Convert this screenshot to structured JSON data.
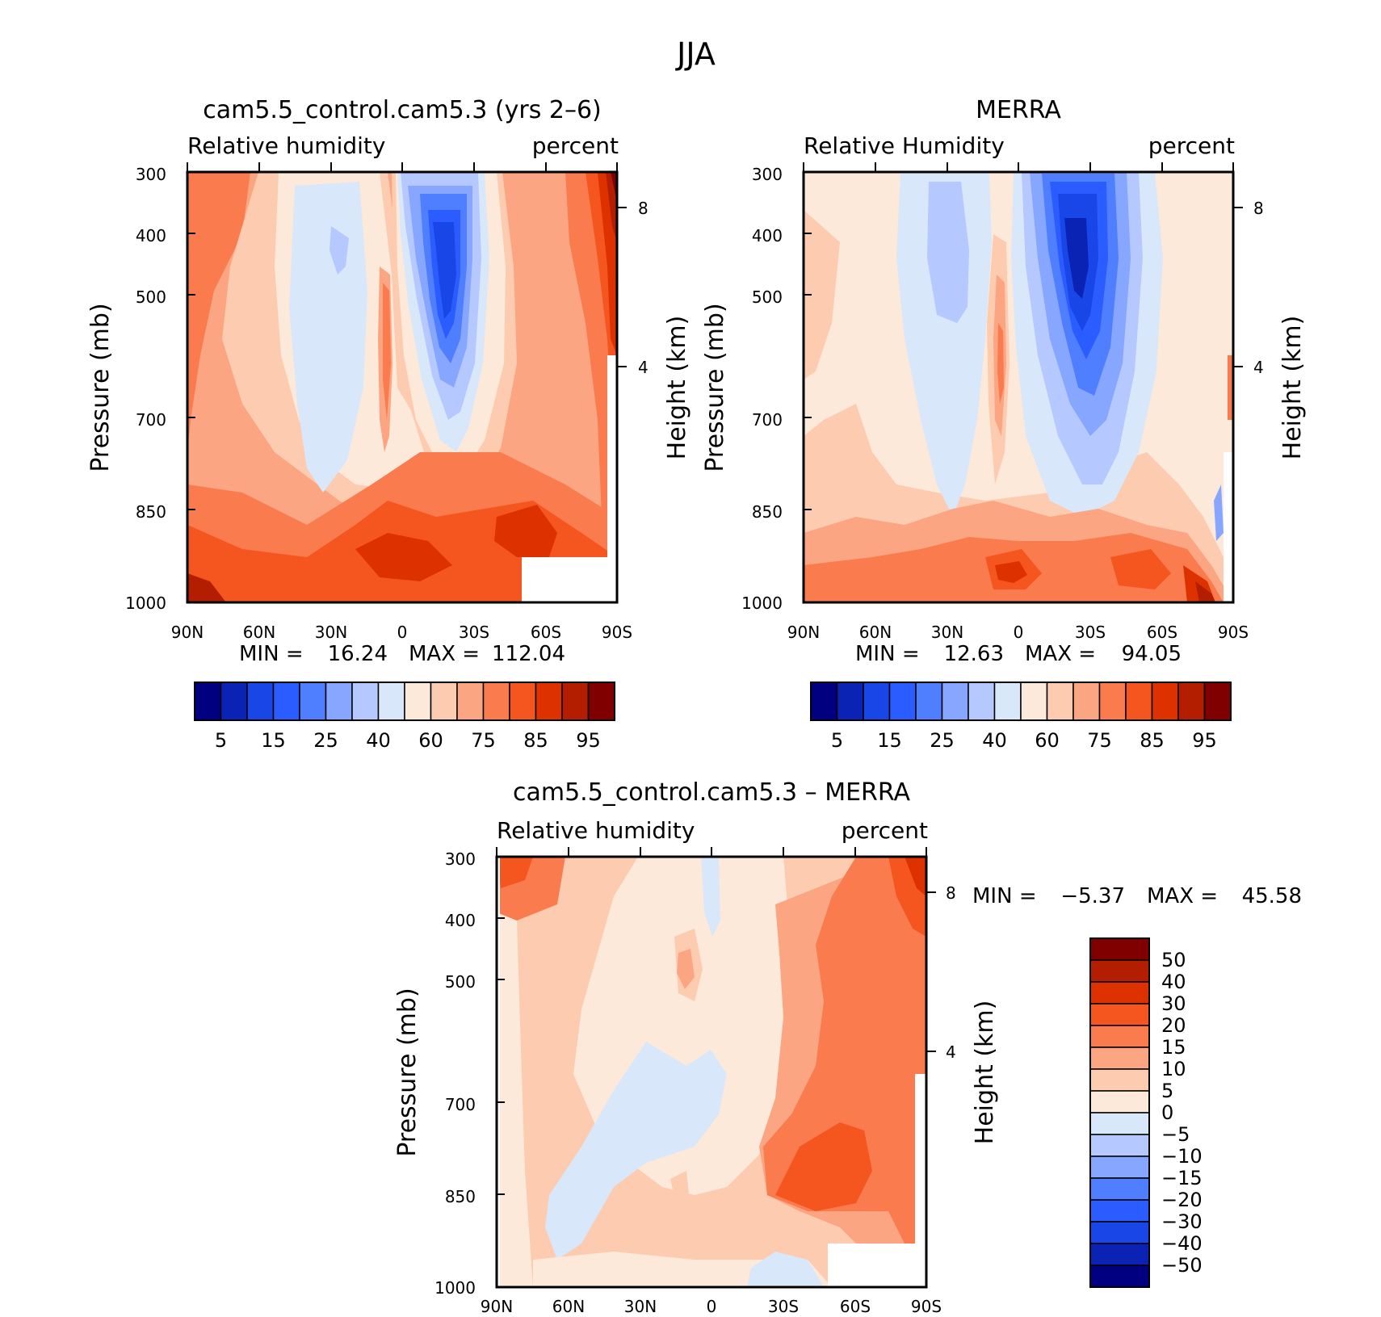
{
  "figure_title": "JJA",
  "colors": {
    "rh_levels": [
      "#000080",
      "#0a23b4",
      "#1946e6",
      "#2a5cff",
      "#4f7fff",
      "#86a6ff",
      "#b5c8ff",
      "#d9e7fa",
      "#fde9da",
      "#fccbb0",
      "#fba582",
      "#f97b4e",
      "#f5551f",
      "#dd3200",
      "#b31e00",
      "#800000"
    ],
    "diff_levels": [
      "#000080",
      "#0a23b4",
      "#1946e6",
      "#2a5cff",
      "#4f7fff",
      "#86a6ff",
      "#b5c8ff",
      "#d9e7fa",
      "#fde9da",
      "#fccbb0",
      "#fba582",
      "#f97b4e",
      "#f5551f",
      "#dd3200",
      "#b31e00",
      "#800000"
    ]
  },
  "panels": [
    {
      "title": "cam5.5_control.cam5.3 (yrs 2–6)",
      "left_label": "Relative humidity",
      "right_label": "percent",
      "ylabel": "Pressure (mb)",
      "y2label": "Height (km)",
      "y_ticks": [
        "300",
        "400",
        "500",
        "700",
        "850",
        "1000"
      ],
      "y2_ticks": [
        "8",
        "4"
      ],
      "x_ticks": [
        "90N",
        "60N",
        "30N",
        "0",
        "30S",
        "60S",
        "90S"
      ],
      "stats": {
        "min_label": "MIN =",
        "min": "16.24",
        "max_label": "MAX =",
        "max": "112.04"
      },
      "colorbar_labels": [
        "5",
        "15",
        "25",
        "40",
        "60",
        "75",
        "85",
        "95"
      ]
    },
    {
      "title": "MERRA",
      "left_label": "Relative Humidity",
      "right_label": "percent",
      "ylabel": "Pressure (mb)",
      "y2label": "Height (km)",
      "y_ticks": [
        "300",
        "400",
        "500",
        "700",
        "850",
        "1000"
      ],
      "y2_ticks": [
        "8",
        "4"
      ],
      "x_ticks": [
        "90N",
        "60N",
        "30N",
        "0",
        "30S",
        "60S",
        "90S"
      ],
      "stats": {
        "min_label": "MIN =",
        "min": "12.63",
        "max_label": "MAX =",
        "max": "94.05"
      },
      "colorbar_labels": [
        "5",
        "15",
        "25",
        "40",
        "60",
        "75",
        "85",
        "95"
      ]
    },
    {
      "title": "cam5.5_control.cam5.3 – MERRA",
      "left_label": "Relative humidity",
      "right_label": "percent",
      "ylabel": "Pressure (mb)",
      "y2label": "Height (km)",
      "y_ticks": [
        "300",
        "400",
        "500",
        "700",
        "850",
        "1000"
      ],
      "y2_ticks": [
        "8",
        "4"
      ],
      "x_ticks": [
        "90N",
        "60N",
        "30N",
        "0",
        "30S",
        "60S",
        "90S"
      ],
      "stats": {
        "min_label": "MIN =",
        "min": "−5.37",
        "max_label": "MAX =",
        "max": "45.58"
      },
      "colorbar_labels": [
        "50",
        "40",
        "30",
        "20",
        "15",
        "10",
        "5",
        "0",
        "−5",
        "−10",
        "−15",
        "−20",
        "−30",
        "−40",
        "−50"
      ]
    }
  ],
  "chart_data": [
    {
      "type": "heatmap",
      "title": "cam5.5_control.cam5.3 (yrs 2–6)",
      "x_categories": [
        "90N",
        "60N",
        "30N",
        "0",
        "30S",
        "60S",
        "90S"
      ],
      "x_range_deg": [
        90,
        -90
      ],
      "y_pressure_levels_mb": [
        300,
        400,
        500,
        700,
        850,
        1000
      ],
      "height_km_ticks": [
        8,
        4
      ],
      "variable": "Relative humidity",
      "units": "percent",
      "contour_levels": [
        5,
        10,
        15,
        20,
        25,
        30,
        40,
        50,
        60,
        70,
        75,
        80,
        85,
        90,
        95
      ],
      "min": 16.24,
      "max": 112.04
    },
    {
      "type": "heatmap",
      "title": "MERRA",
      "x_categories": [
        "90N",
        "60N",
        "30N",
        "0",
        "30S",
        "60S",
        "90S"
      ],
      "x_range_deg": [
        90,
        -90
      ],
      "y_pressure_levels_mb": [
        300,
        400,
        500,
        700,
        850,
        1000
      ],
      "height_km_ticks": [
        8,
        4
      ],
      "variable": "Relative Humidity",
      "units": "percent",
      "contour_levels": [
        5,
        10,
        15,
        20,
        25,
        30,
        40,
        50,
        60,
        70,
        75,
        80,
        85,
        90,
        95
      ],
      "min": 12.63,
      "max": 94.05
    },
    {
      "type": "heatmap",
      "title": "cam5.5_control.cam5.3 – MERRA",
      "x_categories": [
        "90N",
        "60N",
        "30N",
        "0",
        "30S",
        "60S",
        "90S"
      ],
      "x_range_deg": [
        90,
        -90
      ],
      "y_pressure_levels_mb": [
        300,
        400,
        500,
        700,
        850,
        1000
      ],
      "height_km_ticks": [
        8,
        4
      ],
      "variable": "Relative humidity",
      "units": "percent",
      "contour_levels": [
        -50,
        -40,
        -30,
        -20,
        -15,
        -10,
        -5,
        0,
        5,
        10,
        15,
        20,
        30,
        40,
        50
      ],
      "min": -5.37,
      "max": 45.58
    }
  ]
}
